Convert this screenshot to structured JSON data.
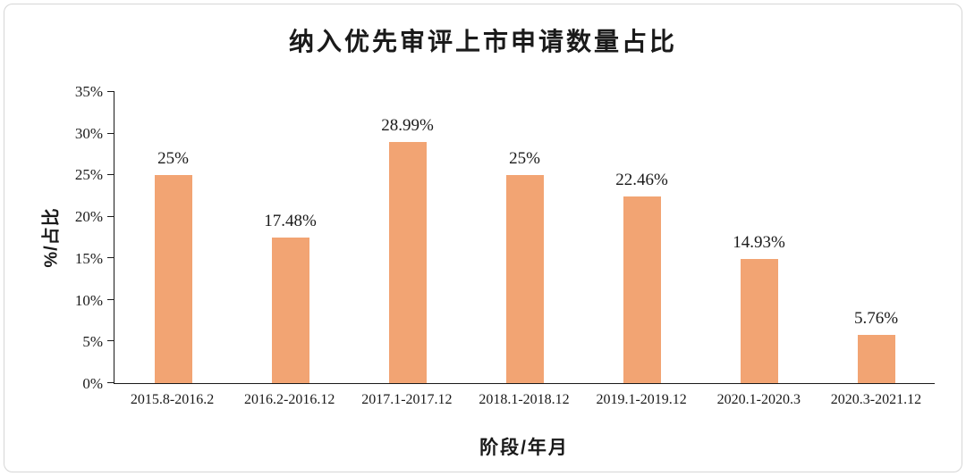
{
  "chart_data": {
    "type": "bar",
    "title": "纳入优先审评上市申请数量占比",
    "xlabel": "阶段/年月",
    "ylabel": "%/占比",
    "categories": [
      "2015.8-2016.2",
      "2016.2-2016.12",
      "2017.1-2017.12",
      "2018.1-2018.12",
      "2019.1-2019.12",
      "2020.1-2020.3",
      "2020.3-2021.12"
    ],
    "values": [
      25,
      17.48,
      28.99,
      25,
      22.46,
      14.93,
      5.76
    ],
    "labels": [
      "25%",
      "17.48%",
      "28.99%",
      "25%",
      "22.46%",
      "14.93%",
      "5.76%"
    ],
    "ylim": [
      0,
      35
    ],
    "ytick_step": 5,
    "ytick_suffix": "%",
    "bar_color": "#F2A473",
    "axis_color": "#1a1a1a",
    "grid": false,
    "legend": false
  }
}
